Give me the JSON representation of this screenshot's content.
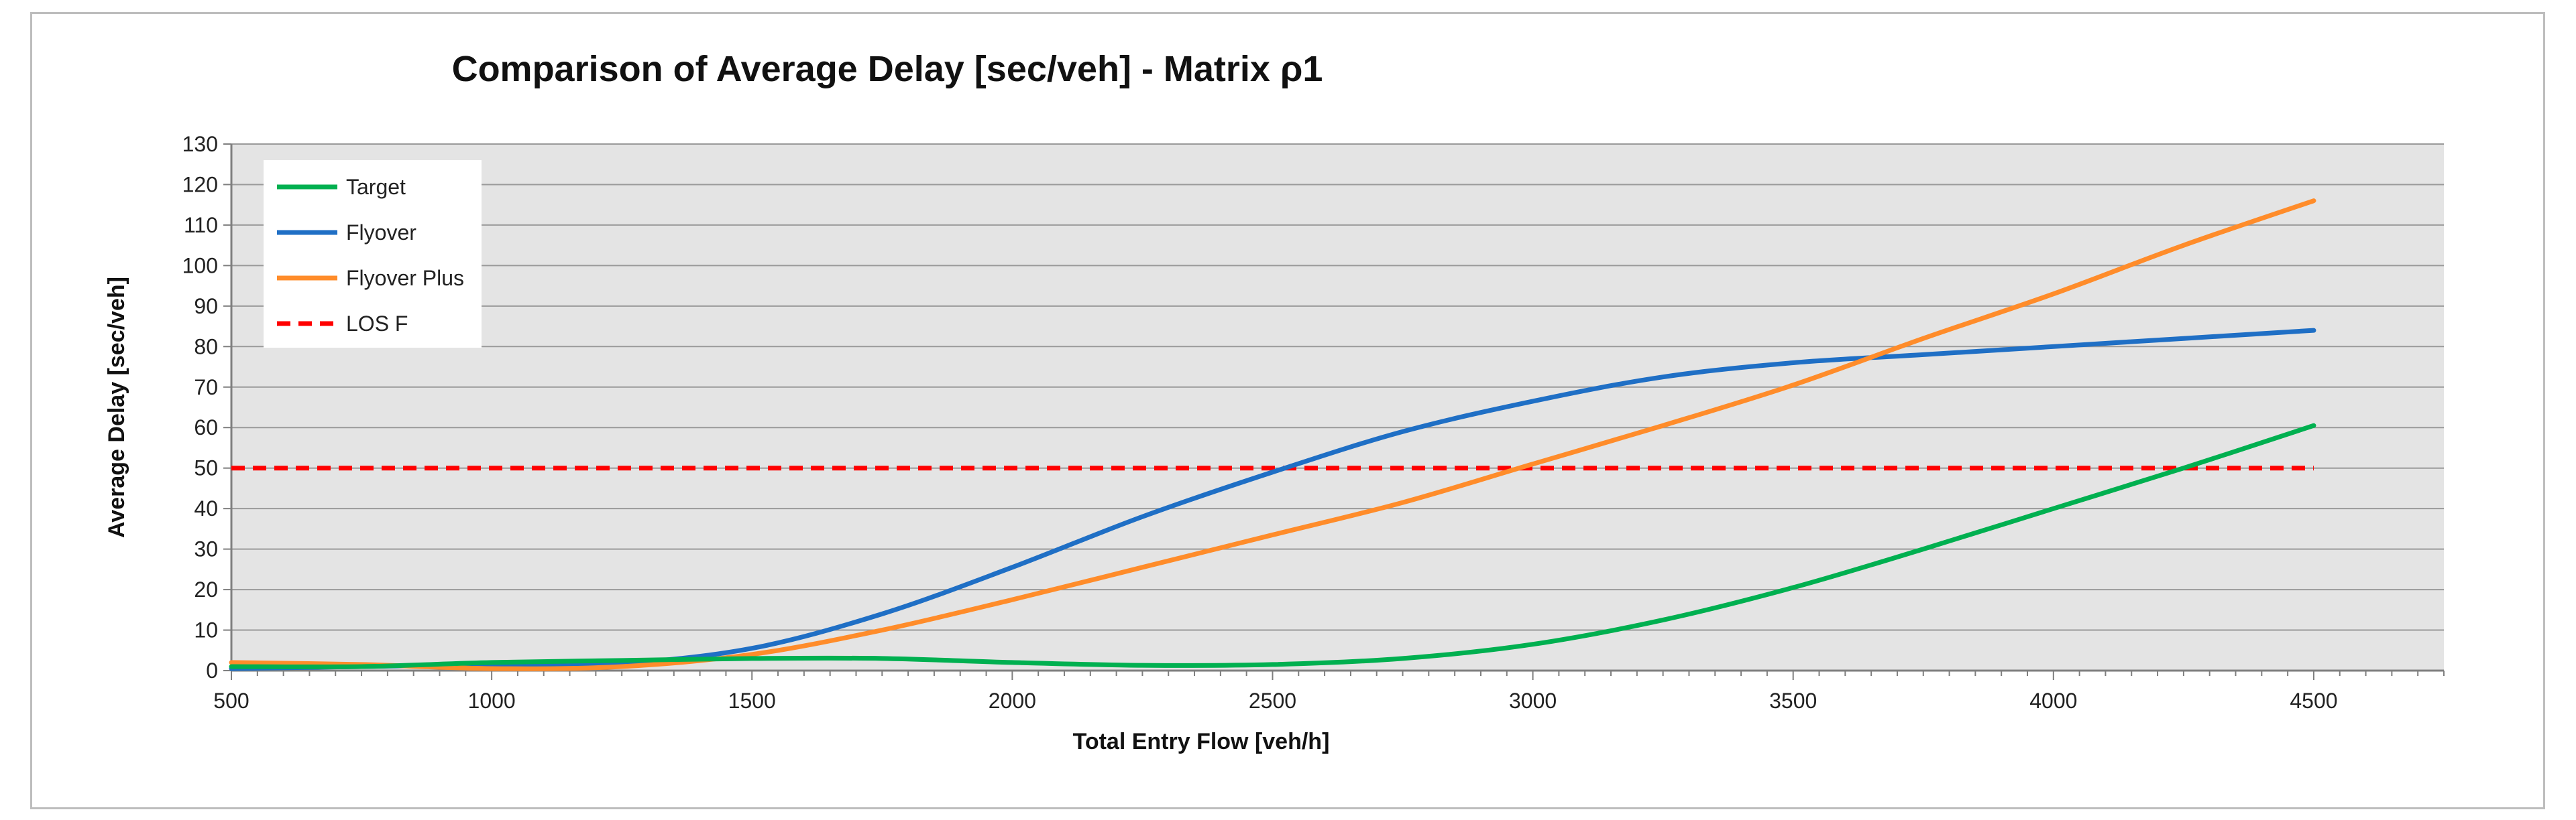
{
  "chart_data": {
    "type": "line",
    "title": "Comparison of Average Delay [sec/veh] - Matrix ρ1",
    "xlabel": "Total Entry Flow [veh/h]",
    "ylabel": "Average Delay [sec/veh]",
    "xlim": [
      500,
      4750
    ],
    "ylim": [
      0,
      130
    ],
    "xticks": [
      500,
      1000,
      1500,
      2000,
      2500,
      3000,
      3500,
      4000,
      4500
    ],
    "yticks": [
      0,
      10,
      20,
      30,
      40,
      50,
      60,
      70,
      80,
      90,
      100,
      110,
      120,
      130
    ],
    "grid": true,
    "legend_position": "top-left",
    "colors": {
      "Target": "#00b050",
      "Flyover": "#1f6fc5",
      "Flyover Plus": "#ff8c2a",
      "LOS F": "#ff0000"
    },
    "series": [
      {
        "name": "Target",
        "x": [
          500,
          750,
          1000,
          1250,
          1500,
          1750,
          2000,
          2250,
          2500,
          2750,
          3000,
          3250,
          3500,
          3750,
          4000,
          4250,
          4500
        ],
        "values": [
          1,
          1,
          2,
          2.5,
          3,
          3,
          2,
          1.3,
          1.5,
          3,
          6.5,
          12.5,
          20.5,
          30,
          40,
          50,
          60.5
        ]
      },
      {
        "name": "Flyover",
        "x": [
          500,
          750,
          1000,
          1250,
          1500,
          1750,
          2000,
          2250,
          2500,
          2750,
          3000,
          3250,
          3500,
          3750,
          4000,
          4250,
          4500
        ],
        "values": [
          0.5,
          1,
          1.5,
          1.8,
          5.5,
          14,
          25.5,
          38,
          49,
          59,
          66.5,
          72.5,
          76,
          78,
          80,
          82,
          84
        ]
      },
      {
        "name": "Flyover Plus",
        "x": [
          500,
          750,
          1000,
          1250,
          1500,
          1750,
          2000,
          2250,
          2500,
          2750,
          3000,
          3250,
          3500,
          3750,
          4000,
          4250,
          4500
        ],
        "values": [
          2,
          1.5,
          0.5,
          1,
          4,
          10,
          17.5,
          25.5,
          33.5,
          41.5,
          51,
          60.5,
          70.5,
          82,
          93,
          105,
          116
        ]
      },
      {
        "name": "LOS F",
        "x": [
          500,
          4500
        ],
        "values": [
          50,
          50
        ],
        "dashed": true
      }
    ]
  }
}
